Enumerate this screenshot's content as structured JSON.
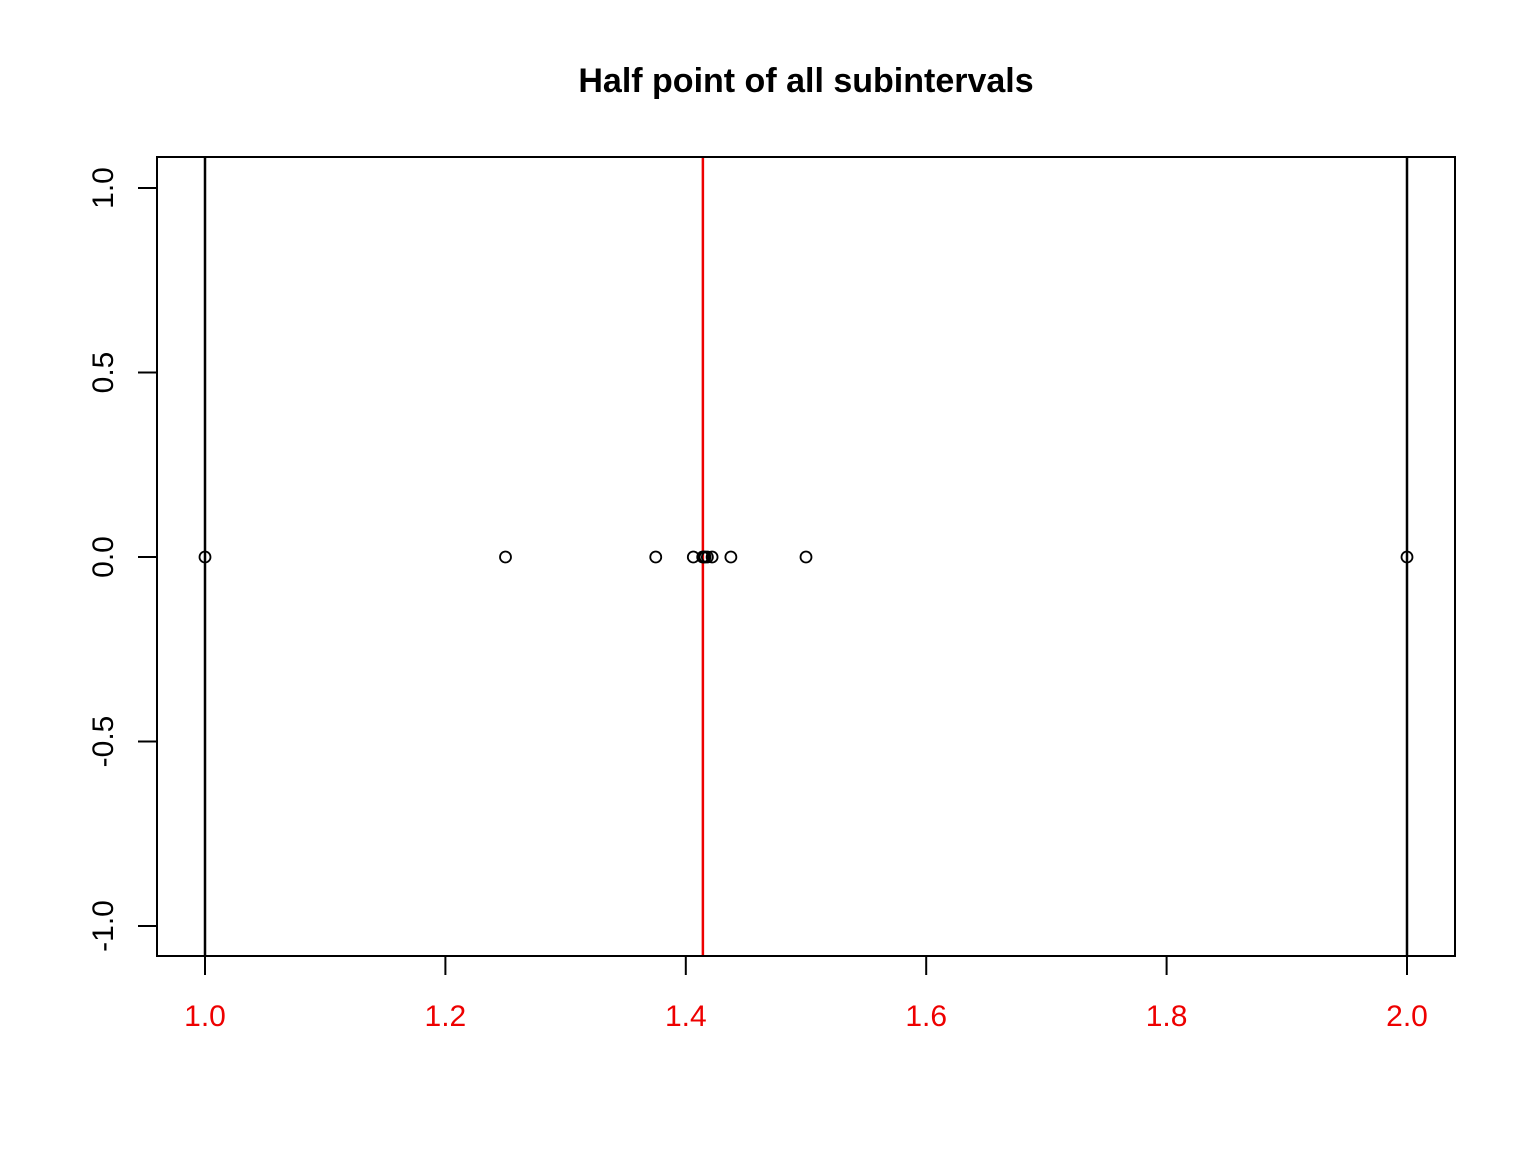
{
  "chart_data": {
    "type": "scatter",
    "title": "Half point of all subintervals",
    "xlabel": "",
    "ylabel": "",
    "xlim": [
      1.0,
      2.0
    ],
    "ylim": [
      -1.0,
      1.0
    ],
    "x_ticks": [
      {
        "value": 1.0,
        "label": "1.0"
      },
      {
        "value": 1.2,
        "label": "1.2"
      },
      {
        "value": 1.4,
        "label": "1.4"
      },
      {
        "value": 1.6,
        "label": "1.6"
      },
      {
        "value": 1.8,
        "label": "1.8"
      },
      {
        "value": 2.0,
        "label": "2.0"
      }
    ],
    "y_ticks": [
      {
        "value": -1.0,
        "label": "-1.0"
      },
      {
        "value": -0.5,
        "label": "-0.5"
      },
      {
        "value": 0.0,
        "label": "0.0"
      },
      {
        "value": 0.5,
        "label": "0.5"
      },
      {
        "value": 1.0,
        "label": "1.0"
      }
    ],
    "points": [
      {
        "x": 1.0,
        "y": 0
      },
      {
        "x": 2.0,
        "y": 0
      },
      {
        "x": 1.5,
        "y": 0
      },
      {
        "x": 1.25,
        "y": 0
      },
      {
        "x": 1.375,
        "y": 0
      },
      {
        "x": 1.4375,
        "y": 0
      },
      {
        "x": 1.40625,
        "y": 0
      },
      {
        "x": 1.421875,
        "y": 0
      },
      {
        "x": 1.4140625,
        "y": 0
      },
      {
        "x": 1.41796875,
        "y": 0
      },
      {
        "x": 1.416015625,
        "y": 0
      },
      {
        "x": 1.4150390625,
        "y": 0
      }
    ],
    "vlines": [
      {
        "x": 1.0,
        "color": "#000000"
      },
      {
        "x": 2.0,
        "color": "#000000"
      },
      {
        "x": 1.41421356,
        "color": "#ee0000"
      }
    ],
    "colors": {
      "x_tick_label": "#ee0000",
      "y_tick_label": "#000000",
      "points": "#000000",
      "axes": "#000000"
    },
    "grid": false,
    "legend": "none"
  }
}
